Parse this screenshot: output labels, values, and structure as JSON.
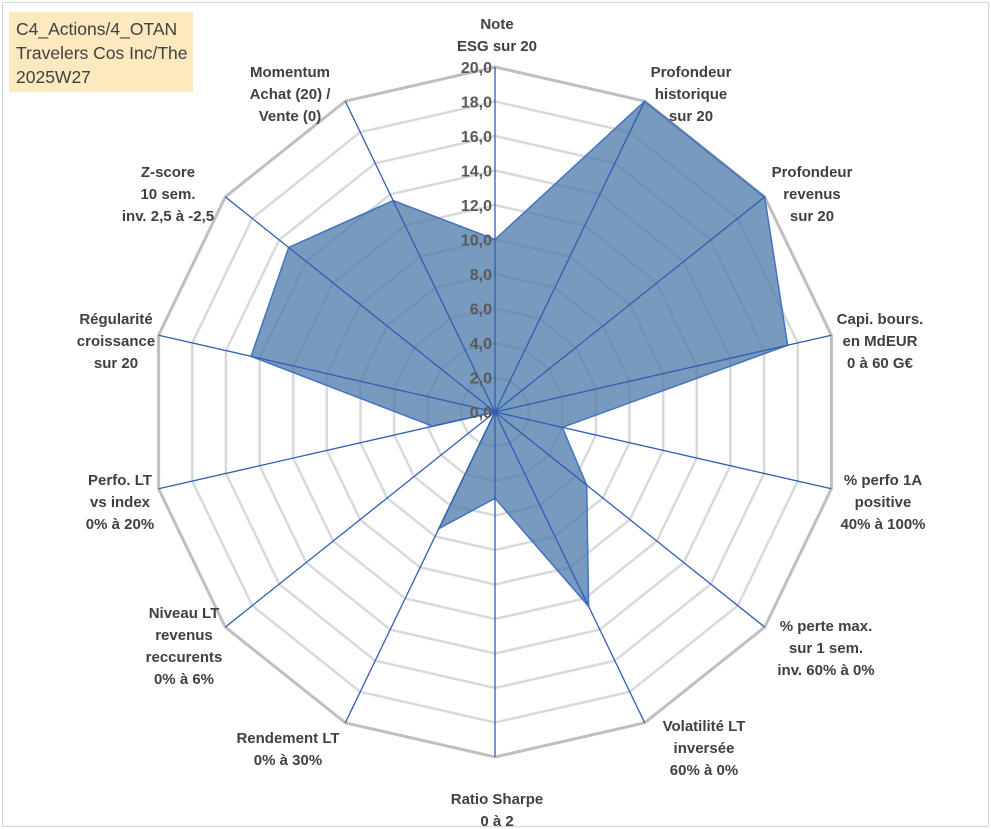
{
  "title_box": {
    "line1": "C4_Actions/4_OTAN",
    "line2": "Travelers Cos Inc/The",
    "line3": "2025W27"
  },
  "chart_data": {
    "type": "radar",
    "axes": [
      [
        "Note",
        "ESG sur 20"
      ],
      [
        "Profondeur",
        "historique",
        "sur 20"
      ],
      [
        "Profondeur",
        "revenus",
        "sur 20"
      ],
      [
        "Capi. bours.",
        "en MdEUR",
        "0 à 60 G€"
      ],
      [
        "% perfo 1A",
        "positive",
        "40% à 100%"
      ],
      [
        "% perte max.",
        "sur 1 sem.",
        "inv. 60% à 0%"
      ],
      [
        "Volatilité LT",
        "inversée",
        "60% à 0%"
      ],
      [
        "Ratio Sharpe",
        "0 à 2"
      ],
      [
        "Rendement LT",
        "0% à 30%"
      ],
      [
        "Niveau LT",
        "revenus",
        "reccurents",
        "0% à 6%"
      ],
      [
        "Perfo. LT",
        "vs index",
        "0% à 20%"
      ],
      [
        "Régularité",
        "croissance",
        "sur 20"
      ],
      [
        "Z-score",
        "10 sem.",
        "inv. 2,5 à -2,5"
      ],
      [
        "Momentum",
        "Achat (20) /",
        "Vente (0)"
      ]
    ],
    "values": [
      10,
      20,
      20,
      17.4,
      4.0,
      6.8,
      12.5,
      5.0,
      7.5,
      0.0,
      3.7,
      14.5,
      15.3,
      13.6
    ],
    "ylim": [
      0,
      20
    ],
    "ticks": [
      "0,0",
      "2,0",
      "4,0",
      "6,0",
      "8,0",
      "10,0",
      "12,0",
      "14,0",
      "16,0",
      "18,0",
      "20,0"
    ],
    "colors": {
      "fill": "#4a78a8",
      "fill_opacity": 0.75,
      "outline": "#4472c4",
      "spoke": "#2f5fb3",
      "outer_grid": "#bfbfbf",
      "inner_grid": "#d9d9d9"
    },
    "grid": true
  }
}
